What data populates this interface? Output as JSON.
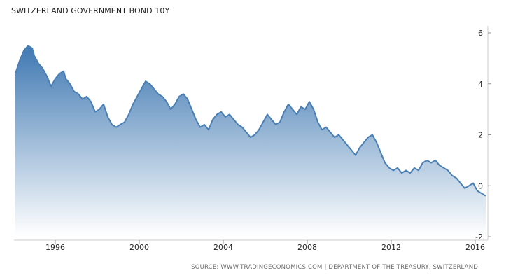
{
  "chart_data": {
    "type": "area",
    "title": "SWITZERLAND GOVERNMENT BOND 10Y",
    "source": "SOURCE: WWW.TRADINGECONOMICS.COM | DEPARTMENT OF THE TREASURY, SWITZERLAND",
    "x_ticks": [
      "1996",
      "2000",
      "2004",
      "2008",
      "2012",
      "2016"
    ],
    "x_tick_values": [
      1996,
      2000,
      2004,
      2008,
      2012,
      2016
    ],
    "y_ticks": [
      "-2",
      "0",
      "2",
      "4",
      "6"
    ],
    "y_tick_values": [
      -2,
      0,
      2,
      4,
      6
    ],
    "xlim": [
      1994.1,
      2016.6
    ],
    "ylim": [
      -2,
      6
    ],
    "grid": false,
    "colors": {
      "line": "#4a7fb5",
      "fill_top": "#3f78b2",
      "fill_bottom": "#ffffff"
    },
    "series": [
      {
        "x": [
          1994.1,
          1994.3,
          1994.5,
          1994.7,
          1994.9,
          1995.0,
          1995.2,
          1995.4,
          1995.6,
          1995.8,
          1996.0,
          1996.2,
          1996.4,
          1996.5,
          1996.7,
          1996.9,
          1997.1,
          1997.3,
          1997.5,
          1997.7,
          1997.9,
          1998.1,
          1998.3,
          1998.5,
          1998.7,
          1998.9,
          1999.1,
          1999.3,
          1999.5,
          1999.7,
          1999.9,
          2000.1,
          2000.3,
          2000.5,
          2000.7,
          2000.9,
          2001.1,
          2001.3,
          2001.5,
          2001.7,
          2001.9,
          2002.1,
          2002.3,
          2002.5,
          2002.7,
          2002.9,
          2003.1,
          2003.3,
          2003.5,
          2003.7,
          2003.9,
          2004.1,
          2004.3,
          2004.5,
          2004.7,
          2004.9,
          2005.1,
          2005.3,
          2005.5,
          2005.7,
          2005.9,
          2006.1,
          2006.3,
          2006.5,
          2006.7,
          2006.9,
          2007.1,
          2007.3,
          2007.5,
          2007.7,
          2007.9,
          2008.1,
          2008.3,
          2008.5,
          2008.7,
          2008.9,
          2009.1,
          2009.3,
          2009.5,
          2009.7,
          2009.9,
          2010.1,
          2010.3,
          2010.5,
          2010.7,
          2010.9,
          2011.1,
          2011.3,
          2011.5,
          2011.7,
          2011.9,
          2012.1,
          2012.3,
          2012.5,
          2012.7,
          2012.9,
          2013.1,
          2013.3,
          2013.5,
          2013.7,
          2013.9,
          2014.1,
          2014.3,
          2014.5,
          2014.7,
          2014.9,
          2015.1,
          2015.3,
          2015.5,
          2015.7,
          2015.9,
          2016.1,
          2016.3,
          2016.5
        ],
        "y": [
          4.4,
          4.9,
          5.3,
          5.5,
          5.4,
          5.1,
          4.8,
          4.6,
          4.3,
          3.9,
          4.2,
          4.4,
          4.5,
          4.2,
          4.0,
          3.7,
          3.6,
          3.4,
          3.5,
          3.3,
          2.9,
          3.0,
          3.2,
          2.7,
          2.4,
          2.3,
          2.4,
          2.5,
          2.8,
          3.2,
          3.5,
          3.8,
          4.1,
          4.0,
          3.8,
          3.6,
          3.5,
          3.3,
          3.0,
          3.2,
          3.5,
          3.6,
          3.4,
          3.0,
          2.6,
          2.3,
          2.4,
          2.2,
          2.6,
          2.8,
          2.9,
          2.7,
          2.8,
          2.6,
          2.4,
          2.3,
          2.1,
          1.9,
          2.0,
          2.2,
          2.5,
          2.8,
          2.6,
          2.4,
          2.5,
          2.9,
          3.2,
          3.0,
          2.8,
          3.1,
          3.0,
          3.3,
          3.0,
          2.5,
          2.2,
          2.3,
          2.1,
          1.9,
          2.0,
          1.8,
          1.6,
          1.4,
          1.2,
          1.5,
          1.7,
          1.9,
          2.0,
          1.7,
          1.3,
          0.9,
          0.7,
          0.6,
          0.7,
          0.5,
          0.6,
          0.5,
          0.7,
          0.6,
          0.9,
          1.0,
          0.9,
          1.0,
          0.8,
          0.7,
          0.6,
          0.4,
          0.3,
          0.1,
          -0.1,
          0.0,
          0.1,
          -0.2,
          -0.3,
          -0.4
        ]
      }
    ]
  }
}
